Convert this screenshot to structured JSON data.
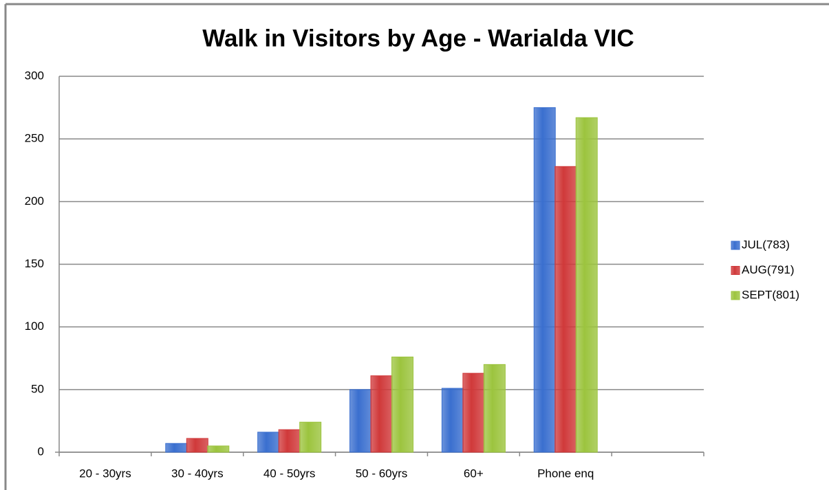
{
  "chart_data": {
    "type": "bar",
    "title": "Walk in Visitors by Age - Warialda VIC",
    "categories": [
      "20 - 30yrs",
      "30 - 40yrs",
      "40 - 50yrs",
      "50 - 60yrs",
      "60+",
      "Phone enq",
      null
    ],
    "series": [
      {
        "name": "JUL(783)",
        "color": "#3a6fcf",
        "values": [
          0,
          7,
          16,
          50,
          51,
          275,
          null
        ]
      },
      {
        "name": "AUG(791)",
        "color": "#d0393a",
        "values": [
          0,
          11,
          18,
          61,
          63,
          228,
          null
        ]
      },
      {
        "name": "SEPT(801)",
        "color": "#9cc43e",
        "values": [
          0,
          5,
          24,
          76,
          70,
          267,
          null
        ]
      }
    ],
    "ylim": [
      0,
      300
    ],
    "yticks": [
      0,
      50,
      100,
      150,
      200,
      250,
      300
    ],
    "grid": true,
    "legend": "right"
  }
}
